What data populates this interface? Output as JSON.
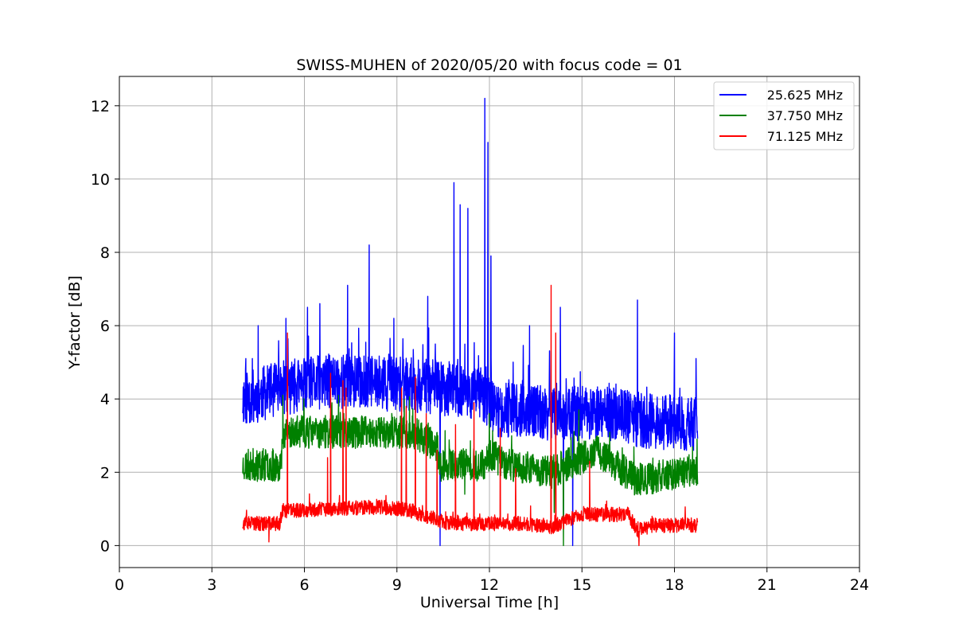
{
  "chart_data": {
    "type": "line",
    "title": "SWISS-MUHEN of 2020/05/20 with focus code = 01",
    "xlabel": "Universal Time [h]",
    "ylabel": "Y-factor [dB]",
    "xlim": [
      0,
      24
    ],
    "ylim": [
      -0.6,
      12.8
    ],
    "xticks": [
      0,
      3,
      6,
      9,
      12,
      15,
      18,
      21,
      24
    ],
    "xtick_labels": [
      "0",
      "3",
      "6",
      "9",
      "12",
      "15",
      "18",
      "21",
      "24"
    ],
    "yticks": [
      0,
      2,
      4,
      6,
      8,
      10,
      12
    ],
    "ytick_labels": [
      "0",
      "2",
      "4",
      "6",
      "8",
      "10",
      "12"
    ],
    "grid": true,
    "legend_position": "top-right",
    "series": [
      {
        "name": "25.625 MHz",
        "color": "#0000ff",
        "x_range": [
          4.0,
          18.75
        ],
        "baseline": [
          [
            4.0,
            4.0
          ],
          [
            5.3,
            4.3
          ],
          [
            7.0,
            4.5
          ],
          [
            9.0,
            4.4
          ],
          [
            10.5,
            4.3
          ],
          [
            11.8,
            4.1
          ],
          [
            12.2,
            3.7
          ],
          [
            14.0,
            3.6
          ],
          [
            16.0,
            3.6
          ],
          [
            17.0,
            3.4
          ],
          [
            18.75,
            3.3
          ]
        ],
        "spikes": [
          [
            4.1,
            5.1
          ],
          [
            4.5,
            6.0
          ],
          [
            5.4,
            6.2
          ],
          [
            6.1,
            6.5
          ],
          [
            6.5,
            6.6
          ],
          [
            7.4,
            7.1
          ],
          [
            8.1,
            8.2
          ],
          [
            8.9,
            6.2
          ],
          [
            10.0,
            6.8
          ],
          [
            10.85,
            9.9
          ],
          [
            11.05,
            9.3
          ],
          [
            11.3,
            9.2
          ],
          [
            11.85,
            12.2
          ],
          [
            11.95,
            11.0
          ],
          [
            12.05,
            7.9
          ],
          [
            13.3,
            6.0
          ],
          [
            14.3,
            6.5
          ],
          [
            16.8,
            6.7
          ],
          [
            18.0,
            5.8
          ],
          [
            18.7,
            5.1
          ],
          [
            10.4,
            0.0
          ],
          [
            14.7,
            0.0
          ],
          [
            14.4,
            0.8
          ]
        ],
        "noise": 0.75,
        "seed": 11
      },
      {
        "name": "37.750 MHz",
        "color": "#008000",
        "x_range": [
          4.0,
          18.75
        ],
        "baseline": [
          [
            4.0,
            2.2
          ],
          [
            5.25,
            2.2
          ],
          [
            5.3,
            3.1
          ],
          [
            9.5,
            3.1
          ],
          [
            10.3,
            2.7
          ],
          [
            10.4,
            2.2
          ],
          [
            11.8,
            2.2
          ],
          [
            12.0,
            2.5
          ],
          [
            12.6,
            2.2
          ],
          [
            14.0,
            2.0
          ],
          [
            15.5,
            2.6
          ],
          [
            16.7,
            1.8
          ],
          [
            17.0,
            1.8
          ],
          [
            18.75,
            2.1
          ]
        ],
        "spikes": [
          [
            5.3,
            4.1
          ],
          [
            14.4,
            0.0
          ],
          [
            14.1,
            0.9
          ],
          [
            11.2,
            1.4
          ],
          [
            14.9,
            3.7
          ]
        ],
        "noise": 0.45,
        "seed": 23
      },
      {
        "name": "71.125 MHz",
        "color": "#ff0000",
        "x_range": [
          4.0,
          18.75
        ],
        "baseline": [
          [
            4.0,
            0.6
          ],
          [
            5.2,
            0.6
          ],
          [
            5.3,
            0.95
          ],
          [
            8.5,
            1.05
          ],
          [
            9.2,
            1.0
          ],
          [
            10.2,
            0.75
          ],
          [
            10.6,
            0.6
          ],
          [
            13.0,
            0.6
          ],
          [
            14.0,
            0.5
          ],
          [
            15.0,
            0.85
          ],
          [
            16.5,
            0.85
          ],
          [
            16.8,
            0.4
          ],
          [
            17.3,
            0.55
          ],
          [
            18.75,
            0.55
          ]
        ],
        "spikes": [
          [
            5.45,
            5.8
          ],
          [
            6.75,
            2.4
          ],
          [
            6.85,
            4.7
          ],
          [
            7.25,
            4.5
          ],
          [
            7.35,
            4.3
          ],
          [
            9.15,
            4.3
          ],
          [
            9.3,
            3.8
          ],
          [
            9.6,
            4.6
          ],
          [
            9.95,
            3.6
          ],
          [
            10.3,
            2.6
          ],
          [
            10.9,
            3.3
          ],
          [
            11.5,
            3.9
          ],
          [
            12.35,
            3.2
          ],
          [
            12.85,
            2.1
          ],
          [
            14.0,
            7.1
          ],
          [
            14.15,
            5.8
          ],
          [
            15.25,
            2.3
          ],
          [
            4.85,
            0.1
          ],
          [
            16.85,
            0.0
          ]
        ],
        "noise": 0.2,
        "seed": 37
      }
    ]
  }
}
